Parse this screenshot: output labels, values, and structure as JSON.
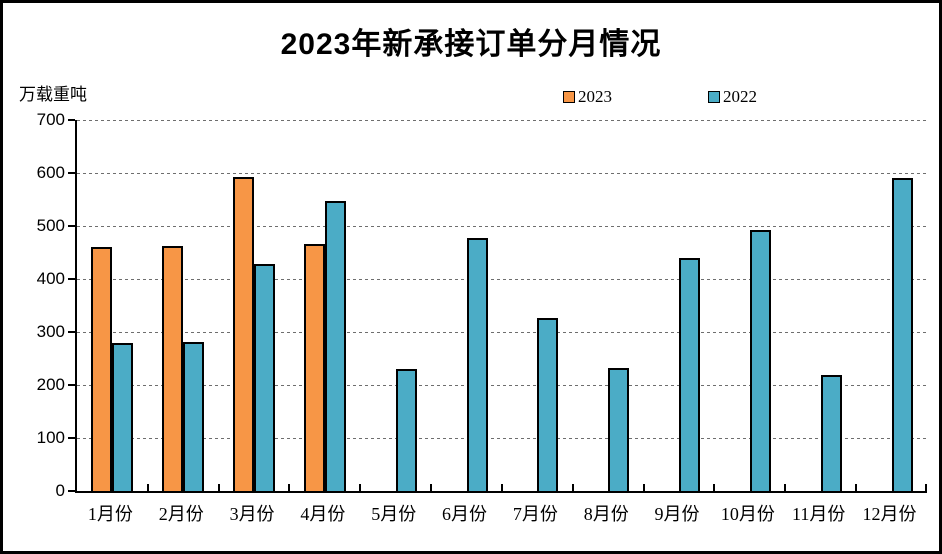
{
  "title": "2023年新承接订单分月情况",
  "y_unit_label": "万载重吨",
  "legend": {
    "items": [
      {
        "label": "2023",
        "color": "#F79646"
      },
      {
        "label": "2022",
        "color": "#4BACC6"
      }
    ]
  },
  "chart_data": {
    "type": "bar",
    "title": "2023年新承接订单分月情况",
    "ylabel": "万载重吨",
    "xlabel": "",
    "ylim": [
      0,
      700
    ],
    "ytick_interval": 100,
    "grid": "horizontal-dashed",
    "legend_position": "top",
    "categories": [
      "1月份",
      "2月份",
      "3月份",
      "4月份",
      "5月份",
      "6月份",
      "7月份",
      "8月份",
      "9月份",
      "10月份",
      "11月份",
      "12月份"
    ],
    "series": [
      {
        "name": "2023",
        "color": "#F79646",
        "border_color": "#000000",
        "values": [
          460,
          462,
          593,
          467,
          null,
          null,
          null,
          null,
          null,
          null,
          null,
          null
        ]
      },
      {
        "name": "2022",
        "color": "#4BACC6",
        "border_color": "#000000",
        "values": [
          280,
          282,
          428,
          547,
          230,
          477,
          326,
          232,
          440,
          493,
          219,
          591
        ]
      }
    ]
  },
  "colors": {
    "background": "#FFFFFF",
    "frame_border": "#000000",
    "gridline": "#6E6E6E",
    "axis": "#000000",
    "text": "#000000"
  }
}
